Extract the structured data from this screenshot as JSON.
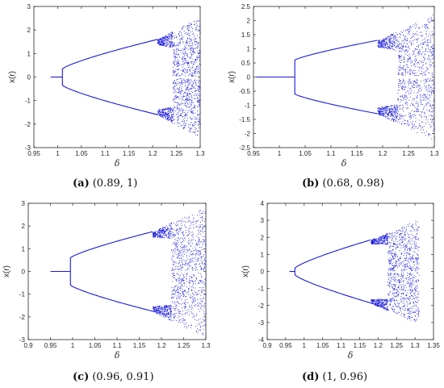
{
  "colors": {
    "series": "#1a1adb",
    "axis": "#262626",
    "background": "#ffffff"
  },
  "chart_data": [
    {
      "type": "scatter",
      "ylabel": "x(r)",
      "xlabel": "δ",
      "xlim": [
        0.95,
        1.3
      ],
      "ylim": [
        -3,
        3
      ],
      "xticks": [
        "0.95",
        "1",
        "1.05",
        "1.1",
        "1.15",
        "1.2",
        "1.25",
        "1.3"
      ],
      "yticks": [
        "-3",
        "-2",
        "-1",
        "0",
        "1",
        "2",
        "3"
      ],
      "caption_label": "(a)",
      "caption_text": "(0.89, 1)",
      "fixed_point": {
        "delta_start": 0.985,
        "delta_end": 1.01,
        "x": 0
      },
      "period2_branch": {
        "delta_start": 1.01,
        "delta_end": 1.21,
        "x_start": 0.35,
        "x_end": 1.6
      },
      "chaos_region": {
        "delta_start": 1.21,
        "delta_end": 1.3,
        "x_max": 2.6
      }
    },
    {
      "type": "scatter",
      "ylabel": "x(r)",
      "xlabel": "δ",
      "xlim": [
        0.95,
        1.3
      ],
      "ylim": [
        -2.5,
        2.5
      ],
      "xticks": [
        "0.95",
        "1",
        "1.05",
        "1.1",
        "1.15",
        "1.2",
        "1.25",
        "1.3"
      ],
      "yticks": [
        "-2.5",
        "-2",
        "-1.5",
        "-1",
        "-0.5",
        "0",
        "0.5",
        "1",
        "1.5",
        "2",
        "2.5"
      ],
      "caption_label": "(b)",
      "caption_text": "(0.68, 0.98)",
      "fixed_point": {
        "delta_start": 0.955,
        "delta_end": 1.03,
        "x": 0
      },
      "period2_branch": {
        "delta_start": 1.03,
        "delta_end": 1.19,
        "x_start": 0.6,
        "x_end": 1.3
      },
      "chaos_region": {
        "delta_start": 1.19,
        "delta_end": 1.3,
        "x_max": 2.25
      }
    },
    {
      "type": "scatter",
      "ylabel": "x(r)",
      "xlabel": "δ",
      "xlim": [
        0.9,
        1.3
      ],
      "ylim": [
        -3,
        3
      ],
      "xticks": [
        "0.9",
        "0.95",
        "1",
        "1.05",
        "1.1",
        "1.15",
        "1.2",
        "1.25",
        "1.3"
      ],
      "yticks": [
        "-3",
        "-2",
        "-1",
        "0",
        "1",
        "2",
        "3"
      ],
      "caption_label": "(c)",
      "caption_text": "(0.96, 0.91)",
      "fixed_point": {
        "delta_start": 0.95,
        "delta_end": 0.995,
        "x": 0
      },
      "period2_branch": {
        "delta_start": 0.995,
        "delta_end": 1.18,
        "x_start": 0.6,
        "x_end": 1.75
      },
      "chaos_region": {
        "delta_start": 1.18,
        "delta_end": 1.3,
        "x_max": 2.9
      }
    },
    {
      "type": "scatter",
      "ylabel": "x(r)",
      "xlabel": "δ",
      "xlim": [
        0.9,
        1.35
      ],
      "ylim": [
        -4,
        4
      ],
      "xticks": [
        "0.9",
        "0.95",
        "1",
        "1.05",
        "1.1",
        "1.15",
        "1.2",
        "1.25",
        "1.3",
        "1.35"
      ],
      "yticks": [
        "-4",
        "-3",
        "-2",
        "-1",
        "0",
        "1",
        "2",
        "3",
        "4"
      ],
      "caption_label": "(d)",
      "caption_text": "(1, 0.96)",
      "fixed_point": {
        "delta_start": 0.96,
        "delta_end": 0.975,
        "x": 0
      },
      "period2_branch": {
        "delta_start": 0.975,
        "delta_end": 1.18,
        "x_start": 0.2,
        "x_end": 1.85
      },
      "chaos_region": {
        "delta_start": 1.18,
        "delta_end": 1.31,
        "x_max": 3.1
      }
    }
  ]
}
